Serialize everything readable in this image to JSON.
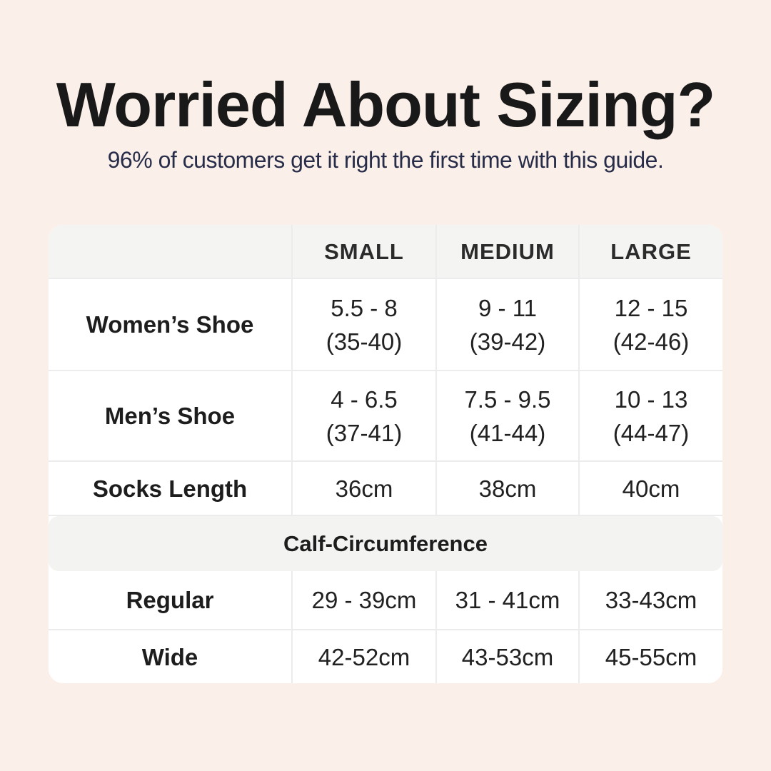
{
  "page": {
    "title": "Worried About Sizing?",
    "subtitle": "96% of customers get it right the first time with this guide.",
    "colors": {
      "background": "#fbf0e9",
      "card": "#ffffff",
      "header_band": "#f4f4f2",
      "section_band": "#f3f3f1",
      "divider": "#ececec",
      "title_text": "#191919",
      "subtitle_text": "#272c49",
      "cell_text": "#212121"
    }
  },
  "size_table": {
    "column_headers": [
      "SMALL",
      "MEDIUM",
      "LARGE"
    ],
    "rows": [
      {
        "label": "Women’s Shoe",
        "small": [
          "5.5 - 8",
          "(35-40)"
        ],
        "medium": [
          "9 - 11",
          "(39-42)"
        ],
        "large": [
          "12 - 15",
          "(42-46)"
        ]
      },
      {
        "label": "Men’s Shoe",
        "small": [
          "4 - 6.5",
          "(37-41)"
        ],
        "medium": [
          "7.5 - 9.5",
          "(41-44)"
        ],
        "large": [
          "10 - 13",
          "(44-47)"
        ]
      },
      {
        "label": "Socks Length",
        "small": [
          "36cm"
        ],
        "medium": [
          "38cm"
        ],
        "large": [
          "40cm"
        ]
      }
    ],
    "section": {
      "title": "Calf-Circumference",
      "rows": [
        {
          "label": "Regular",
          "small": [
            "29 - 39cm"
          ],
          "medium": [
            "31 - 41cm"
          ],
          "large": [
            "33-43cm"
          ]
        },
        {
          "label": "Wide",
          "small": [
            "42-52cm"
          ],
          "medium": [
            "43-53cm"
          ],
          "large": [
            "45-55cm"
          ]
        }
      ]
    }
  }
}
